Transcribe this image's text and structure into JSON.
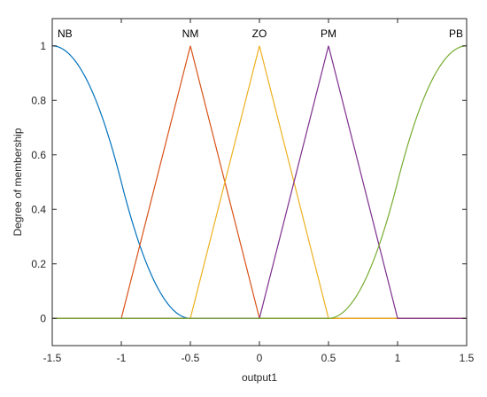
{
  "chart_data": {
    "type": "line",
    "xlabel": "output1",
    "ylabel": "Degree of membership",
    "xlim": [
      -1.5,
      1.5
    ],
    "ylim": [
      -0.1,
      1.1
    ],
    "grid": false,
    "legend": "none",
    "x_ticks": [
      "-1.5",
      "-1",
      "-0.5",
      "0",
      "0.5",
      "1",
      "1.5"
    ],
    "y_ticks": [
      "0",
      "0.2",
      "0.4",
      "0.6",
      "0.8",
      "1"
    ],
    "series": [
      {
        "name": "NB",
        "shape": "z-shaped",
        "params": [
          -1.5,
          -0.5
        ],
        "color": "#0072bd",
        "x": [
          -1.5,
          -1.25,
          -1.0,
          -0.75,
          -0.5,
          1.5
        ],
        "y": [
          1,
          0.875,
          0.5,
          0.125,
          0,
          0
        ]
      },
      {
        "name": "NM",
        "shape": "triangular",
        "params": [
          -1.0,
          -0.5,
          0.0
        ],
        "color": "#d95319",
        "x": [
          -1.5,
          -1.0,
          -0.5,
          0.0,
          1.5
        ],
        "y": [
          0,
          0,
          1,
          0,
          0
        ]
      },
      {
        "name": "ZO",
        "shape": "triangular",
        "params": [
          -0.5,
          0.0,
          0.5
        ],
        "color": "#edb120",
        "x": [
          -1.5,
          -0.5,
          0.0,
          0.5,
          1.5
        ],
        "y": [
          0,
          0,
          1,
          0,
          0
        ]
      },
      {
        "name": "PM",
        "shape": "triangular",
        "params": [
          0.0,
          0.5,
          1.0
        ],
        "color": "#7e2f8e",
        "x": [
          -1.5,
          0.0,
          0.5,
          1.0,
          1.5
        ],
        "y": [
          0,
          0,
          1,
          0,
          0
        ]
      },
      {
        "name": "PB",
        "shape": "s-shaped",
        "params": [
          0.5,
          1.5
        ],
        "color": "#77ac30",
        "x": [
          -1.5,
          0.5,
          0.75,
          1.0,
          1.25,
          1.5
        ],
        "y": [
          0,
          0,
          0.125,
          0.5,
          0.875,
          1
        ]
      }
    ]
  }
}
